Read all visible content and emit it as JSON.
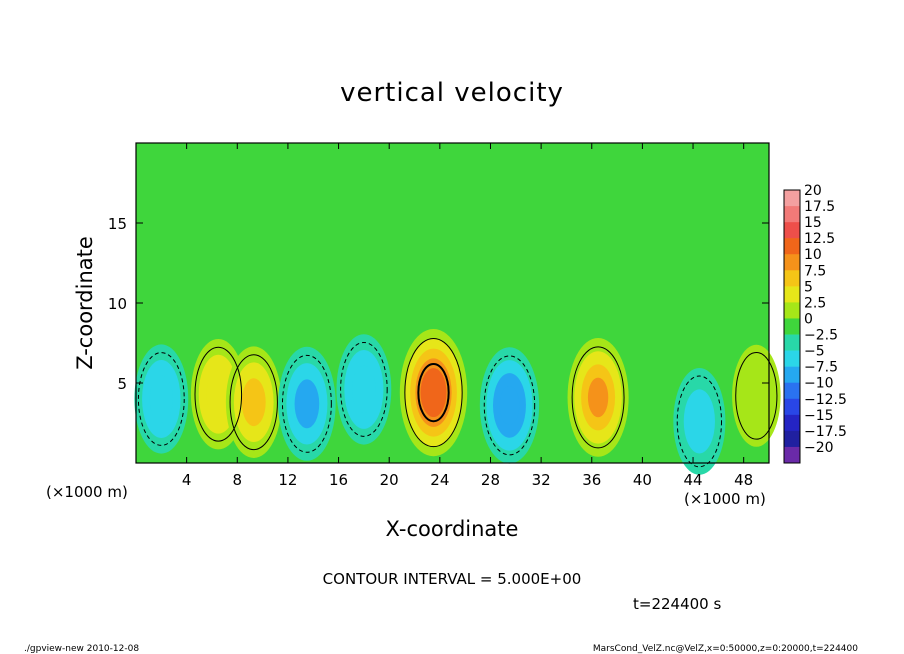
{
  "chart_data": {
    "type": "heatmap",
    "title": "vertical velocity",
    "xlabel": "X-coordinate",
    "ylabel": "Z-coordinate",
    "x_unit_left": "(×1000 m)",
    "x_unit_right": "(×1000 m)",
    "xlim": [
      0,
      50
    ],
    "ylim": [
      0,
      20
    ],
    "xticks": [
      4,
      8,
      12,
      16,
      20,
      24,
      28,
      32,
      36,
      40,
      44,
      48
    ],
    "yticks": [
      5,
      10,
      15
    ],
    "colorbar": {
      "levels": [
        "20",
        "17.5",
        "15",
        "12.5",
        "10",
        "7.5",
        "5",
        "2.5",
        "0",
        "−2.5",
        "−5",
        "−7.5",
        "−10",
        "−12.5",
        "−15",
        "−17.5",
        "−20"
      ],
      "colors": [
        "#f4a0a0",
        "#f27a78",
        "#ee4f4a",
        "#f0661a",
        "#f5921a",
        "#f5c516",
        "#e6e619",
        "#a6e618",
        "#3fd63c",
        "#28d8a8",
        "#2bd6e8",
        "#25a8f0",
        "#2a72f0",
        "#2946e6",
        "#2424c4",
        "#2020a0",
        "#6a2aa8"
      ]
    },
    "background_value": 0,
    "features": [
      {
        "x": 2.0,
        "z": 4.0,
        "value": -5.5
      },
      {
        "x": 6.5,
        "z": 4.3,
        "value": 6.0
      },
      {
        "x": 9.3,
        "z": 3.8,
        "value": 6.5
      },
      {
        "x": 13.5,
        "z": 3.7,
        "value": -7.5
      },
      {
        "x": 18.0,
        "z": 4.6,
        "value": -6.0
      },
      {
        "x": 23.5,
        "z": 4.4,
        "value": 13.0
      },
      {
        "x": 29.5,
        "z": 3.6,
        "value": -8.5
      },
      {
        "x": 36.5,
        "z": 4.1,
        "value": 9.5
      },
      {
        "x": 44.5,
        "z": 2.6,
        "value": -4.5
      },
      {
        "x": 49.0,
        "z": 4.2,
        "value": 2.5
      }
    ],
    "contour_interval_label": "CONTOUR INTERVAL = 5.000E+00",
    "time_label": "t=224400 s"
  },
  "footer": {
    "left": "./gpview-new   2010-12-08",
    "right": "MarsCond_VelZ.nc@VelZ,x=0:50000,z=0:20000,t=224400"
  }
}
